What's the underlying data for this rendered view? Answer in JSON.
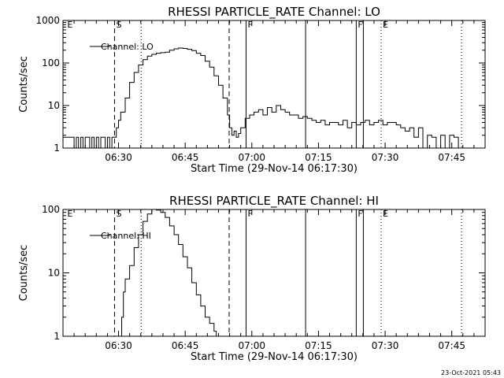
{
  "chart_data": [
    {
      "type": "line",
      "title": "RHESSI PARTICLE_RATE Channel: LO",
      "xlabel": "Start Time (29-Nov-14 06:17:30)",
      "ylabel": "Counts/sec",
      "x_unit": "minutes after 06:17:30",
      "xlim": [
        0,
        95
      ],
      "ylim": [
        1,
        1000
      ],
      "y_scale": "log",
      "x_ticks": [
        "06:30",
        "06:45",
        "07:00",
        "07:15",
        "07:30",
        "07:45"
      ],
      "y_ticks": [
        "1",
        "10",
        "100",
        "1000"
      ],
      "legend": {
        "position": "top-left",
        "entries": [
          "Channel: LO"
        ]
      },
      "markers": [
        {
          "label": "E",
          "x": 0.6
        },
        {
          "label": "S",
          "x": 11.6
        },
        {
          "label": "F",
          "x": 41.2
        },
        {
          "label": "F",
          "x": 66.0
        },
        {
          "label": "E",
          "x": 71.6
        }
      ],
      "vlines": [
        {
          "x": 11.6,
          "style": "dashed"
        },
        {
          "x": 17.6,
          "style": "dotted"
        },
        {
          "x": 37.4,
          "style": "dashed"
        },
        {
          "x": 41.2,
          "style": "solid"
        },
        {
          "x": 54.6,
          "style": "solid"
        },
        {
          "x": 66.0,
          "style": "solid"
        },
        {
          "x": 67.6,
          "style": "solid"
        },
        {
          "x": 71.6,
          "style": "dotted"
        },
        {
          "x": 89.7,
          "style": "dotted"
        }
      ],
      "series": [
        {
          "name": "Channel: LO",
          "x": [
            0,
            2,
            2.5,
            3,
            3.5,
            4,
            4.5,
            5,
            5.5,
            6,
            6.5,
            7,
            7.5,
            8,
            8.5,
            9,
            9.5,
            10,
            10.5,
            11,
            11.5,
            12,
            12.5,
            13,
            14,
            15,
            16,
            17,
            18,
            19,
            20,
            21,
            22,
            23,
            24,
            25,
            26,
            27,
            28,
            29,
            30,
            31,
            32,
            33,
            34,
            35,
            36,
            37,
            37.5,
            38,
            38.5,
            39,
            39.5,
            40,
            41,
            42,
            43,
            44,
            45,
            46,
            47,
            48,
            49,
            50,
            51,
            52,
            53,
            54,
            55,
            56,
            57,
            58,
            59,
            60,
            61,
            62,
            63,
            64,
            65,
            66,
            67,
            68,
            69,
            70,
            71,
            72,
            73,
            74,
            75,
            76,
            77,
            78,
            79,
            80,
            81,
            82,
            83,
            84,
            85,
            86,
            87,
            88,
            89,
            89.5
          ],
          "values": [
            1.8,
            1.8,
            1,
            1.8,
            1,
            1.8,
            1,
            1.8,
            1.8,
            1,
            1.8,
            1,
            1.8,
            1,
            1.8,
            1.8,
            1,
            1.8,
            1,
            1.8,
            1.8,
            3,
            4.5,
            7,
            15,
            35,
            60,
            90,
            120,
            145,
            160,
            170,
            175,
            180,
            200,
            215,
            225,
            220,
            210,
            195,
            170,
            150,
            110,
            80,
            50,
            30,
            15,
            6,
            3,
            2,
            2.5,
            1.8,
            2.2,
            3,
            5,
            6,
            7,
            8,
            6,
            9,
            7,
            10,
            8,
            7,
            6,
            6,
            5,
            5.5,
            5,
            4.5,
            4,
            4.5,
            3.5,
            4,
            4,
            3.5,
            4.5,
            3,
            4,
            3.5,
            4,
            4.5,
            3.5,
            4,
            4.5,
            3.5,
            4,
            4,
            3.5,
            3,
            2.5,
            3,
            1.8,
            3,
            1,
            2,
            1.8,
            1,
            2,
            1,
            2,
            1.8,
            1,
            1
          ]
        }
      ]
    },
    {
      "type": "line",
      "title": "RHESSI PARTICLE_RATE Channel: HI",
      "xlabel": "Start Time (29-Nov-14 06:17:30)",
      "ylabel": "Counts/sec",
      "x_unit": "minutes after 06:17:30",
      "xlim": [
        0,
        95
      ],
      "ylim": [
        1,
        100
      ],
      "y_scale": "log",
      "x_ticks": [
        "06:30",
        "06:45",
        "07:00",
        "07:15",
        "07:30",
        "07:45"
      ],
      "y_ticks": [
        "1",
        "10",
        "100"
      ],
      "legend": {
        "position": "top-left",
        "entries": [
          "Channel: HI"
        ]
      },
      "markers": [
        {
          "label": "E",
          "x": 0.6
        },
        {
          "label": "S",
          "x": 11.6
        },
        {
          "label": "F",
          "x": 41.2
        },
        {
          "label": "F",
          "x": 66.0
        },
        {
          "label": "E",
          "x": 71.6
        }
      ],
      "vlines": [
        {
          "x": 11.6,
          "style": "dashed"
        },
        {
          "x": 17.6,
          "style": "dotted"
        },
        {
          "x": 37.4,
          "style": "dashed"
        },
        {
          "x": 41.2,
          "style": "solid"
        },
        {
          "x": 54.6,
          "style": "solid"
        },
        {
          "x": 66.0,
          "style": "solid"
        },
        {
          "x": 67.6,
          "style": "solid"
        },
        {
          "x": 71.6,
          "style": "dotted"
        },
        {
          "x": 89.7,
          "style": "dotted"
        }
      ],
      "series": [
        {
          "name": "Channel: HI",
          "x": [
            12.8,
            13.2,
            13.6,
            14,
            15,
            16,
            17,
            18,
            19,
            20,
            21,
            22,
            23,
            24,
            25,
            26,
            27,
            28,
            29,
            30,
            31,
            32,
            33,
            34,
            34.5
          ],
          "values": [
            1,
            2,
            5,
            8,
            13,
            25,
            40,
            65,
            85,
            100,
            98,
            90,
            75,
            55,
            40,
            28,
            18,
            12,
            7,
            4.5,
            3,
            2,
            1.6,
            1.2,
            1
          ]
        }
      ]
    }
  ],
  "timestamp": "23-Oct-2021 05:43"
}
